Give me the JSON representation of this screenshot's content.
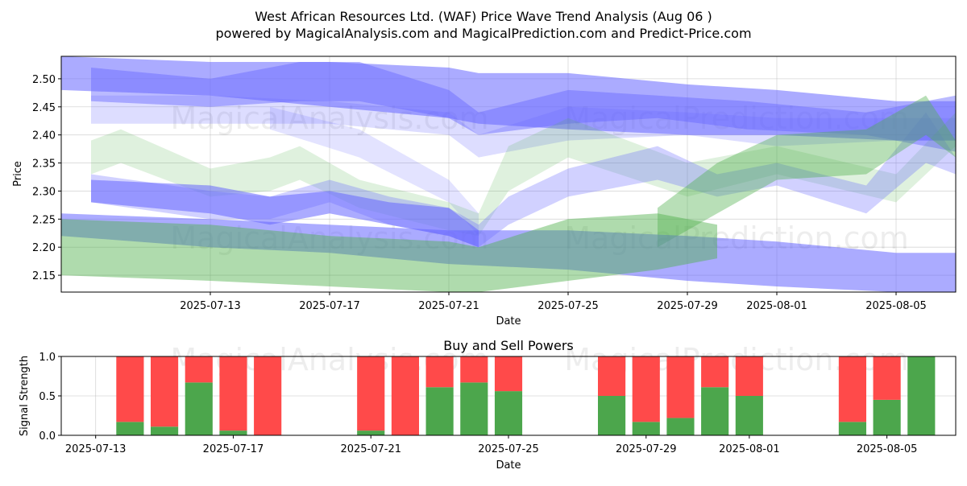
{
  "title_line1": "West African Resources Ltd. (WAF) Price Wave Trend Analysis (Aug 06 )",
  "title_line2": "powered by MagicalAnalysis.com and MagicalPrediction.com and Predict-Price.com",
  "watermarks": [
    "MagicalAnalysis.com",
    "MagicalPrediction.com"
  ],
  "colors": {
    "blue": "#6666ff",
    "green": "#4daf4a",
    "red": "#ff4444",
    "buy": "#4ca64c",
    "sell": "#ff4a4a"
  },
  "chart_data": [
    {
      "type": "area",
      "title": "",
      "xlabel": "Date",
      "ylabel": "Price",
      "x_range": [
        "2025-07-08",
        "2025-08-07"
      ],
      "ylim": [
        2.12,
        2.54
      ],
      "x_ticks": [
        "2025-07-13",
        "2025-07-17",
        "2025-07-21",
        "2025-07-25",
        "2025-07-29",
        "2025-08-01",
        "2025-08-05"
      ],
      "y_ticks": [
        2.15,
        2.2,
        2.25,
        2.3,
        2.35,
        2.4,
        2.45,
        2.5
      ],
      "grid": true,
      "series": [
        {
          "name": "wave-blue-top",
          "color": "blue",
          "alpha": 0.55,
          "x": [
            "2025-07-08",
            "2025-07-13",
            "2025-07-17",
            "2025-07-21",
            "2025-07-22",
            "2025-07-25",
            "2025-07-29",
            "2025-08-01",
            "2025-08-05",
            "2025-08-07"
          ],
          "upper": [
            2.54,
            2.53,
            2.53,
            2.52,
            2.51,
            2.51,
            2.49,
            2.48,
            2.46,
            2.46
          ],
          "lower": [
            2.48,
            2.47,
            2.45,
            2.43,
            2.42,
            2.41,
            2.4,
            2.4,
            2.39,
            2.39
          ]
        },
        {
          "name": "wave-blue-upper-mid",
          "color": "blue",
          "alpha": 0.45,
          "x": [
            "2025-07-09",
            "2025-07-13",
            "2025-07-16",
            "2025-07-18",
            "2025-07-21",
            "2025-07-22",
            "2025-07-25",
            "2025-07-28",
            "2025-07-31",
            "2025-08-04",
            "2025-08-07"
          ],
          "upper": [
            2.52,
            2.5,
            2.53,
            2.53,
            2.48,
            2.44,
            2.48,
            2.47,
            2.46,
            2.44,
            2.47
          ],
          "lower": [
            2.46,
            2.45,
            2.46,
            2.46,
            2.43,
            2.4,
            2.42,
            2.43,
            2.41,
            2.4,
            2.37
          ]
        },
        {
          "name": "wave-blue-light",
          "color": "blue",
          "alpha": 0.22,
          "x": [
            "2025-07-09",
            "2025-07-13",
            "2025-07-17",
            "2025-07-21",
            "2025-07-22",
            "2025-07-25",
            "2025-07-29",
            "2025-08-01",
            "2025-08-05",
            "2025-08-07"
          ],
          "upper": [
            2.47,
            2.47,
            2.46,
            2.44,
            2.4,
            2.45,
            2.44,
            2.43,
            2.43,
            2.43
          ],
          "lower": [
            2.42,
            2.42,
            2.42,
            2.4,
            2.36,
            2.39,
            2.4,
            2.38,
            2.39,
            2.39
          ]
        },
        {
          "name": "wave-blue-falling",
          "color": "blue",
          "alpha": 0.18,
          "x": [
            "2025-07-15",
            "2025-07-18",
            "2025-07-21",
            "2025-07-22"
          ],
          "upper": [
            2.45,
            2.41,
            2.32,
            2.26
          ],
          "lower": [
            2.41,
            2.36,
            2.28,
            2.22
          ]
        },
        {
          "name": "wave-green-light",
          "color": "green",
          "alpha": 0.18,
          "x": [
            "2025-07-09",
            "2025-07-10",
            "2025-07-13",
            "2025-07-15",
            "2025-07-16",
            "2025-07-18",
            "2025-07-21",
            "2025-07-22",
            "2025-07-23",
            "2025-07-25",
            "2025-07-29",
            "2025-08-01",
            "2025-08-05",
            "2025-08-07"
          ],
          "upper": [
            2.39,
            2.41,
            2.34,
            2.36,
            2.38,
            2.32,
            2.28,
            2.26,
            2.38,
            2.43,
            2.35,
            2.38,
            2.33,
            2.44
          ],
          "lower": [
            2.33,
            2.35,
            2.29,
            2.3,
            2.32,
            2.27,
            2.23,
            2.22,
            2.3,
            2.36,
            2.29,
            2.33,
            2.28,
            2.38
          ]
        },
        {
          "name": "wave-blue-mid",
          "color": "blue",
          "alpha": 0.3,
          "x": [
            "2025-07-09",
            "2025-07-13",
            "2025-07-15",
            "2025-07-17",
            "2025-07-19",
            "2025-07-21",
            "2025-07-22",
            "2025-07-23",
            "2025-07-25",
            "2025-07-28",
            "2025-07-30",
            "2025-08-01",
            "2025-08-04",
            "2025-08-06",
            "2025-08-07"
          ],
          "upper": [
            2.33,
            2.3,
            2.29,
            2.32,
            2.29,
            2.27,
            2.24,
            2.29,
            2.34,
            2.38,
            2.33,
            2.35,
            2.31,
            2.44,
            2.36
          ],
          "lower": [
            2.28,
            2.25,
            2.25,
            2.28,
            2.24,
            2.22,
            2.2,
            2.24,
            2.29,
            2.32,
            2.29,
            2.31,
            2.26,
            2.35,
            2.33
          ]
        },
        {
          "name": "wave-blue-lower-solid",
          "color": "blue",
          "alpha": 0.55,
          "x": [
            "2025-07-09",
            "2025-07-13",
            "2025-07-15",
            "2025-07-17",
            "2025-07-19",
            "2025-07-21",
            "2025-07-22"
          ],
          "upper": [
            2.32,
            2.31,
            2.29,
            2.3,
            2.28,
            2.27,
            2.23
          ],
          "lower": [
            2.28,
            2.26,
            2.24,
            2.26,
            2.24,
            2.22,
            2.2
          ]
        },
        {
          "name": "wave-green-rise",
          "color": "green",
          "alpha": 0.4,
          "x": [
            "2025-07-28",
            "2025-07-30",
            "2025-08-01",
            "2025-08-04",
            "2025-08-06",
            "2025-08-07"
          ],
          "upper": [
            2.27,
            2.35,
            2.4,
            2.41,
            2.47,
            2.39
          ],
          "lower": [
            2.2,
            2.26,
            2.32,
            2.33,
            2.4,
            2.36
          ]
        },
        {
          "name": "wave-blue-base",
          "color": "blue",
          "alpha": 0.55,
          "x": [
            "2025-07-08",
            "2025-07-13",
            "2025-07-17",
            "2025-07-21",
            "2025-07-25",
            "2025-07-29",
            "2025-08-01",
            "2025-08-05",
            "2025-08-07"
          ],
          "upper": [
            2.26,
            2.25,
            2.24,
            2.23,
            2.23,
            2.22,
            2.21,
            2.19,
            2.19
          ],
          "lower": [
            2.22,
            2.2,
            2.19,
            2.17,
            2.16,
            2.14,
            2.13,
            2.12,
            2.12
          ]
        },
        {
          "name": "wave-green-low",
          "color": "green",
          "alpha": 0.45,
          "x": [
            "2025-07-08",
            "2025-07-13",
            "2025-07-17",
            "2025-07-21",
            "2025-07-22",
            "2025-07-25",
            "2025-07-28",
            "2025-07-30"
          ],
          "upper": [
            2.25,
            2.24,
            2.22,
            2.21,
            2.2,
            2.25,
            2.26,
            2.24
          ],
          "lower": [
            2.15,
            2.14,
            2.13,
            2.12,
            2.12,
            2.14,
            2.16,
            2.18
          ]
        }
      ]
    },
    {
      "type": "bar",
      "title": "Buy and Sell Powers",
      "xlabel": "Date",
      "ylabel": "Signal Strength",
      "x_range": [
        "2025-07-12",
        "2025-08-07"
      ],
      "ylim": [
        0,
        1.0
      ],
      "y_ticks": [
        "0.0",
        "0.5",
        "1.0"
      ],
      "x_ticks": [
        "2025-07-13",
        "2025-07-17",
        "2025-07-21",
        "2025-07-25",
        "2025-07-29",
        "2025-08-01",
        "2025-08-05"
      ],
      "categories": [
        "2025-07-14",
        "2025-07-15",
        "2025-07-16",
        "2025-07-17",
        "2025-07-18",
        "2025-07-21",
        "2025-07-22",
        "2025-07-23",
        "2025-07-24",
        "2025-07-25",
        "2025-07-28",
        "2025-07-29",
        "2025-07-30",
        "2025-07-31",
        "2025-08-01",
        "2025-08-04",
        "2025-08-05",
        "2025-08-06"
      ],
      "series": [
        {
          "name": "Buy",
          "color": "buy",
          "values": [
            0.17,
            0.11,
            0.67,
            0.06,
            0.0,
            0.06,
            0.0,
            0.61,
            0.67,
            0.56,
            0.5,
            0.17,
            0.22,
            0.61,
            0.5,
            0.17,
            0.45,
            1.0
          ]
        },
        {
          "name": "Sell",
          "color": "sell",
          "values": [
            0.83,
            0.89,
            0.33,
            0.94,
            1.0,
            0.94,
            1.0,
            0.39,
            0.33,
            0.44,
            0.5,
            0.83,
            0.78,
            0.39,
            0.5,
            0.83,
            0.55,
            0.0
          ]
        }
      ]
    }
  ]
}
